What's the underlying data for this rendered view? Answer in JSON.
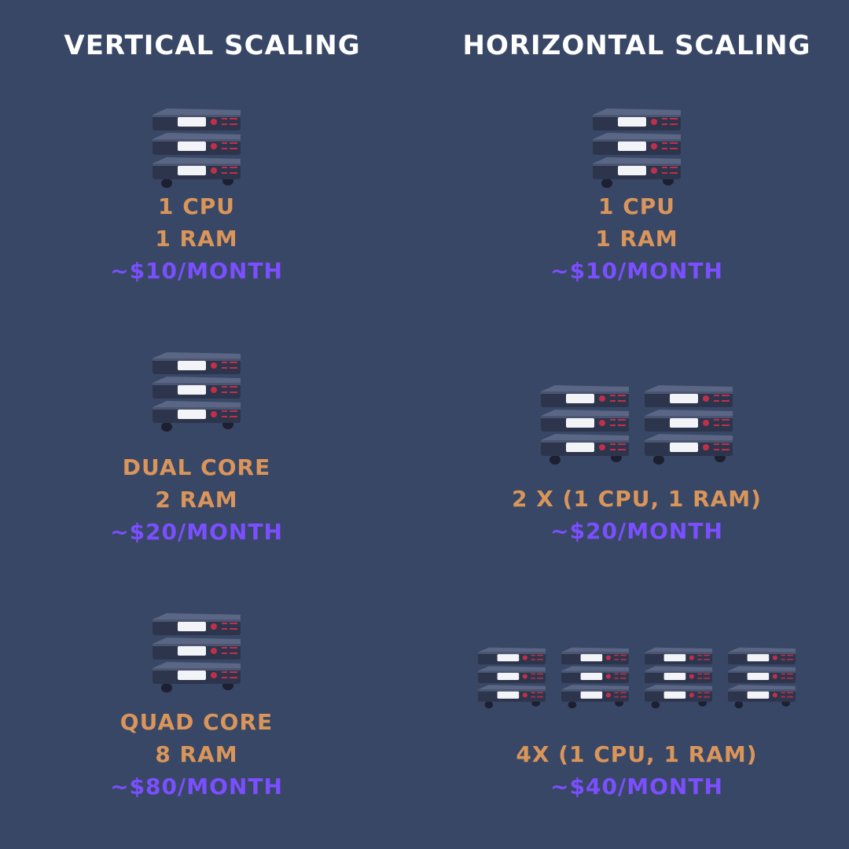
{
  "colors": {
    "background": "#384766",
    "heading": "#ffffff",
    "spec": "#d9955a",
    "price": "#7b4fff"
  },
  "icon": "server-rack-icon",
  "vertical": {
    "title": "VERTICAL SCALING",
    "tiers": [
      {
        "servers": 1,
        "lines": [
          "1 CPU",
          "1 RAM"
        ],
        "price": "~$10/MONTH"
      },
      {
        "servers": 1,
        "lines": [
          "DUAL CORE",
          "2 RAM"
        ],
        "price": "~$20/MONTH"
      },
      {
        "servers": 1,
        "lines": [
          "QUAD CORE",
          "8 RAM"
        ],
        "price": "~$80/MONTH"
      }
    ]
  },
  "horizontal": {
    "title": "HORIZONTAL SCALING",
    "tiers": [
      {
        "servers": 1,
        "lines": [
          "1 CPU",
          "1 RAM"
        ],
        "price": "~$10/MONTH"
      },
      {
        "servers": 2,
        "lines": [
          "2 X (1 CPU, 1 RAM)"
        ],
        "price": "~$20/MONTH"
      },
      {
        "servers": 4,
        "lines": [
          "4X (1 CPU, 1 RAM)"
        ],
        "price": "~$40/MONTH"
      }
    ]
  }
}
